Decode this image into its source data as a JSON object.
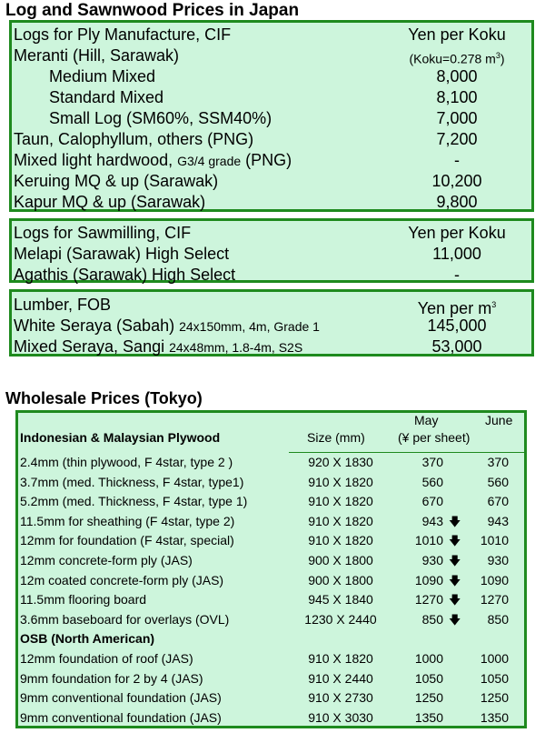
{
  "title": "Log and Sawnwood Prices in Japan",
  "ply_logs": {
    "header": "Logs for Ply Manufacture, CIF",
    "unit": "Yen per Koku",
    "rows": [
      {
        "label": "Meranti (Hill, Sarawak)",
        "value": "(Koku=0.278 m",
        "sup": "3",
        "close": ")"
      },
      {
        "label": "Medium Mixed",
        "value": "8,000"
      },
      {
        "label": "Standard Mixed",
        "value": "8,100"
      },
      {
        "label": "Small Log (SM60%, SSM40%)",
        "value": "7,000"
      },
      {
        "label": "Taun, Calophyllum, others (PNG)",
        "value": "7,200"
      },
      {
        "label": "Mixed light hardwood, ",
        "label_small": "G3/4 grade",
        "label_end": " (PNG)",
        "value": "-"
      },
      {
        "label": "Keruing MQ & up (Sarawak)",
        "value": "10,200"
      },
      {
        "label": "Kapur MQ & up (Sarawak)",
        "value": "9,800"
      }
    ]
  },
  "saw_logs": {
    "header": "Logs for Sawmilling, CIF",
    "unit": "Yen per Koku",
    "rows": [
      {
        "label": "Melapi (Sarawak) High Select",
        "value": "11,000"
      },
      {
        "label": "Agathis (Sarawak) High Select",
        "value": "-"
      }
    ]
  },
  "lumber": {
    "header": "Lumber, FOB",
    "unit": "Yen per m",
    "unit_sup": "3",
    "rows": [
      {
        "label": "White Seraya (Sabah) ",
        "small": "24x150mm, 4m, Grade 1",
        "value": "145,000"
      },
      {
        "label": "Mixed Seraya, Sangi ",
        "small": "24x48mm, 1.8-4m, S2S",
        "value": "53,000"
      }
    ]
  },
  "wholesale": {
    "title": "Wholesale Prices (Tokyo)",
    "header": {
      "category": "Indonesian & Malaysian Plywood",
      "size": "Size (mm)",
      "may": "May",
      "june": "June",
      "unit": "(¥ per sheet)"
    },
    "rows": [
      {
        "d": "2.4mm  (thin plywood, F 4star, type 2 )",
        "s": "920 X 1830",
        "m": "370",
        "a": "",
        "j": "370"
      },
      {
        "d": "3.7mm  (med. Thickness,  F 4star, type1)",
        "s": "910 X 1820",
        "m": "560",
        "a": "",
        "j": "560"
      },
      {
        "d": "5.2mm  (med. Thickness, F 4star, type 1)",
        "s": "910 X 1820",
        "m": "670",
        "a": "",
        "j": "670"
      },
      {
        "d": "11.5mm  for sheathing (F 4star, type 2)",
        "s": "910 X 1820",
        "m": "943",
        "a": "🡇",
        "j": "943"
      },
      {
        "d": "12mm for foundation (F 4star, special)",
        "s": "910 X 1820",
        "m": "1010",
        "a": "🡇",
        "j": "1010"
      },
      {
        "d": "12mm concrete-form ply (JAS)",
        "s": "900 X 1800",
        "m": "930",
        "a": "🡇",
        "j": "930"
      },
      {
        "d": "12m coated concrete-form ply (JAS)",
        "s": "900 X 1800",
        "m": "1090",
        "a": "🡇",
        "j": "1090"
      },
      {
        "d": "11.5mm flooring board",
        "s": "945 X 1840",
        "m": "1270",
        "a": "🡇",
        "j": "1270"
      },
      {
        "d": "3.6mm baseboard for overlays (OVL)",
        "s": "1230 X 2440",
        "m": "850",
        "a": "🡇",
        "j": "850"
      },
      {
        "d": "OSB (North American)",
        "s": "",
        "m": "",
        "a": "",
        "j": "",
        "bold": true
      },
      {
        "d": "12mm foundation of roof (JAS)",
        "s": "910 X 1820",
        "m": "1000",
        "a": "",
        "j": "1000"
      },
      {
        "d": "9mm foundation for 2 by 4 (JAS)",
        "s": "910 X 2440",
        "m": "1050",
        "a": "",
        "j": "1050"
      },
      {
        "d": "9mm conventional foundation (JAS)",
        "s": "910 X 2730",
        "m": "1250",
        "a": "",
        "j": "1250"
      },
      {
        "d": "9mm conventional foundation (JAS)",
        "s": "910 X 3030",
        "m": "1350",
        "a": "",
        "j": "1350"
      }
    ]
  }
}
